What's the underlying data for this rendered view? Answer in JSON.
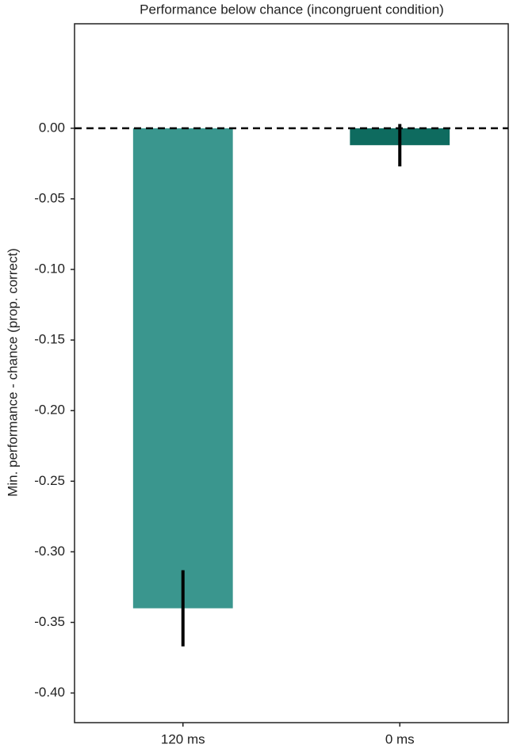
{
  "chart_data": {
    "type": "bar",
    "title": "Performance below chance (incongruent condition)",
    "y_label": "Min. performance - chance (prop. correct)",
    "categories": [
      "120 ms",
      "0 ms"
    ],
    "values": [
      -0.34,
      -0.012
    ],
    "errors": [
      0.027,
      0.015
    ],
    "colors": [
      "#3a968e",
      "#0e6b5f"
    ],
    "reference_line": 0,
    "ylim": [
      -0.421,
      0.074
    ],
    "yticks": [
      {
        "value": 0,
        "label": "0.00"
      },
      {
        "value": -0.05,
        "label": "-0.05"
      },
      {
        "value": -0.1,
        "label": "-0.10"
      },
      {
        "value": -0.15,
        "label": "-0.15"
      },
      {
        "value": -0.2,
        "label": "-0.20"
      },
      {
        "value": -0.25,
        "label": "-0.25"
      },
      {
        "value": -0.3,
        "label": "-0.30"
      },
      {
        "value": -0.35,
        "label": "-0.35"
      },
      {
        "value": -0.4,
        "label": "-0.40"
      }
    ],
    "grid": false
  }
}
